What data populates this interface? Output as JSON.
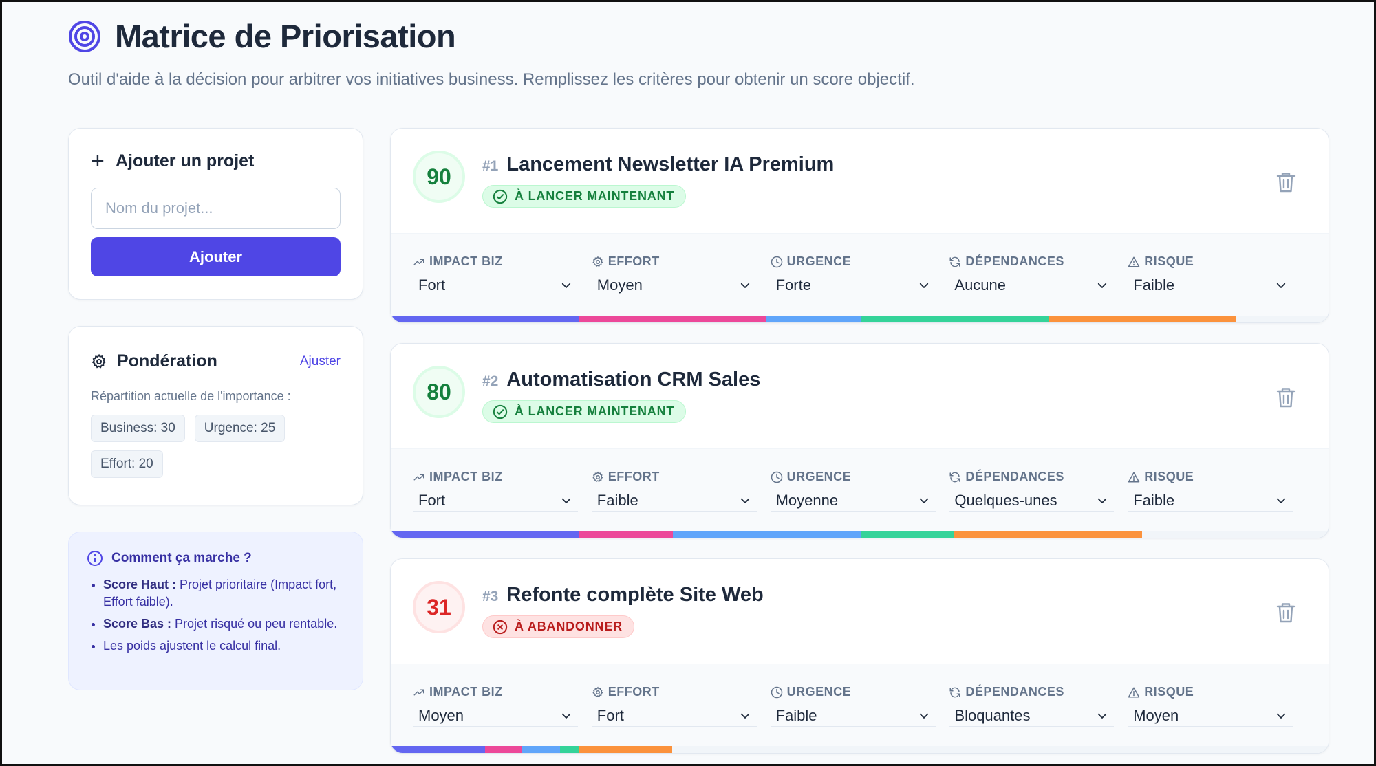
{
  "colors": {
    "accent": "#4f46e5",
    "segments": [
      "#6366f1",
      "#ec4899",
      "#60a5fa",
      "#34d399",
      "#fb923c"
    ],
    "good": "#15803d",
    "bad": "#dc2626"
  },
  "header": {
    "title": "Matrice de Priorisation",
    "subtitle": "Outil d'aide à la décision pour arbitrer vos initiatives business. Remplissez les critères pour obtenir un score objectif.",
    "logo_icon": "target-icon"
  },
  "add_project": {
    "title": "Ajouter un projet",
    "placeholder": "Nom du projet...",
    "button": "Ajouter"
  },
  "weighting": {
    "title": "Pondération",
    "adjust": "Ajuster",
    "description": "Répartition actuelle de l'importance :",
    "chips": [
      "Business: 30",
      "Urgence: 25",
      "Effort: 20"
    ]
  },
  "help": {
    "title": "Comment ça marche ?",
    "items": [
      {
        "bold": "Score Haut :",
        "text": " Projet prioritaire (Impact fort, Effort faible)."
      },
      {
        "bold": "Score Bas :",
        "text": " Projet risqué ou peu rentable."
      },
      {
        "bold": "",
        "text": "Les poids ajustent le calcul final."
      }
    ]
  },
  "criteria_labels": [
    "IMPACT BIZ",
    "EFFORT",
    "URGENCE",
    "DÉPENDANCES",
    "RISQUE"
  ],
  "criteria_icons": [
    "trending-up-icon",
    "gear-icon",
    "clock-icon",
    "refresh-icon",
    "alert-triangle-icon"
  ],
  "projects": [
    {
      "score": "90",
      "rank": "#1",
      "name": "Lancement Newsletter IA Premium",
      "status": "À LANCER MAINTENANT",
      "status_type": "go",
      "values": [
        "Fort",
        "Moyen",
        "Forte",
        "Aucune",
        "Faible"
      ],
      "bar_fractions": [
        0.2,
        0.2,
        0.1,
        0.2,
        0.2
      ]
    },
    {
      "score": "80",
      "rank": "#2",
      "name": "Automatisation CRM Sales",
      "status": "À LANCER MAINTENANT",
      "status_type": "go",
      "values": [
        "Fort",
        "Faible",
        "Moyenne",
        "Quelques-unes",
        "Faible"
      ],
      "bar_fractions": [
        0.2,
        0.1,
        0.2,
        0.1,
        0.2
      ]
    },
    {
      "score": "31",
      "rank": "#3",
      "name": "Refonte complète Site Web",
      "status": "À ABANDONNER",
      "status_type": "stop",
      "values": [
        "Moyen",
        "Fort",
        "Faible",
        "Bloquantes",
        "Moyen"
      ],
      "bar_fractions": [
        0.1,
        0.04,
        0.04,
        0.02,
        0.1
      ]
    }
  ]
}
